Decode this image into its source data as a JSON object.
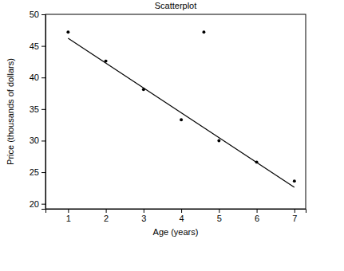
{
  "chart_data": {
    "type": "scatter",
    "title": "Scatterplot",
    "x_label": "Age (years)",
    "y_label": "Price (thousands of dollars)",
    "xlim": [
      0.4,
      7.3
    ],
    "xticks": [
      1,
      2,
      3,
      4,
      5,
      6,
      7
    ],
    "ylim": [
      19.2,
      50
    ],
    "yticks": [
      20,
      25,
      30,
      35,
      40,
      45,
      50
    ],
    "grid": false,
    "series": [
      {
        "type": "scatter",
        "color": "#000000",
        "marker": "circle",
        "x": [
          1,
          2,
          3,
          4,
          4.6,
          5,
          6,
          7
        ],
        "values": [
          47.2,
          42.6,
          38.1,
          33.3,
          47.2,
          30.0,
          26.6,
          23.6
        ]
      },
      {
        "type": "line",
        "color": "#000000",
        "line_style": "solid",
        "x": [
          1,
          7
        ],
        "values": [
          46.2,
          22.6
        ]
      }
    ]
  }
}
